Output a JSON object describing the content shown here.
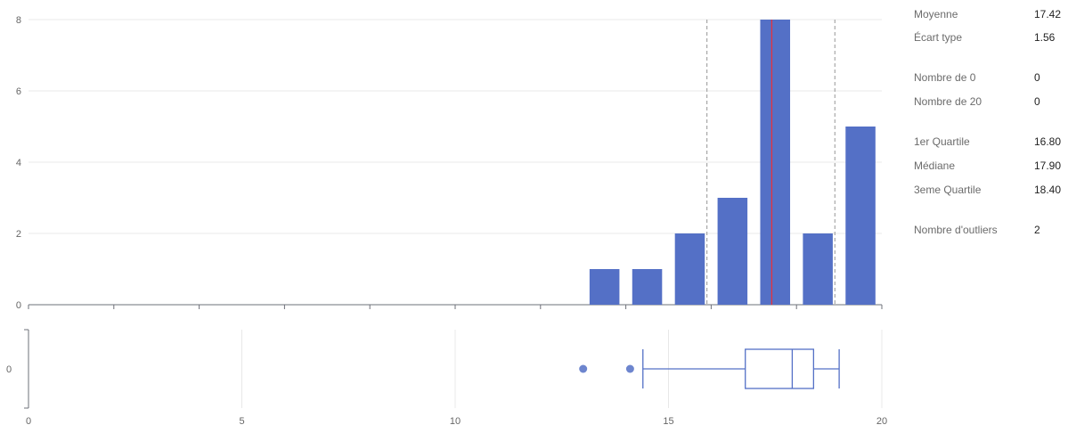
{
  "colors": {
    "bar": "#5470c6",
    "mean_line": "#e5323e",
    "quartile_line": "#a8a8a8",
    "grid": "#e8e8e8",
    "axis": "#6e7079",
    "box": "#5470c6",
    "outlier": "#5470c6"
  },
  "stats": [
    {
      "label": "Moyenne",
      "value": "17.42"
    },
    {
      "label": "Écart type",
      "value": "1.56"
    },
    {
      "label": "Nombre de 0",
      "value": "0"
    },
    {
      "label": "Nombre de 20",
      "value": "0"
    },
    {
      "label": "1er Quartile",
      "value": "16.80"
    },
    {
      "label": "Médiane",
      "value": "17.90"
    },
    {
      "label": "3eme Quartile",
      "value": "18.40"
    },
    {
      "label": "Nombre d'outliers",
      "value": "2"
    }
  ],
  "chart_data": [
    {
      "type": "bar",
      "name": "histogram",
      "bins": [
        {
          "x0": 13,
          "x1": 14,
          "count": 1
        },
        {
          "x0": 14,
          "x1": 15,
          "count": 1
        },
        {
          "x0": 15,
          "x1": 16,
          "count": 2
        },
        {
          "x0": 16,
          "x1": 17,
          "count": 3
        },
        {
          "x0": 17,
          "x1": 18,
          "count": 8
        },
        {
          "x0": 18,
          "x1": 19,
          "count": 2
        },
        {
          "x0": 19,
          "x1": 20,
          "count": 5
        }
      ],
      "xlim": [
        0,
        20
      ],
      "ylim": [
        0,
        8
      ],
      "yticks": [
        "0",
        "2",
        "4",
        "6",
        "8"
      ],
      "mean": 17.42,
      "dashed_lines": [
        15.9,
        18.9
      ],
      "grid": true
    },
    {
      "type": "boxplot",
      "name": "boxplot",
      "category": "0",
      "min": 14.4,
      "q1": 16.8,
      "median": 17.9,
      "q3": 18.4,
      "max": 19.0,
      "outliers": [
        13.0,
        14.1
      ],
      "xlim": [
        0,
        20
      ],
      "xticks": [
        "0",
        "5",
        "10",
        "15",
        "20"
      ],
      "grid": true
    }
  ]
}
